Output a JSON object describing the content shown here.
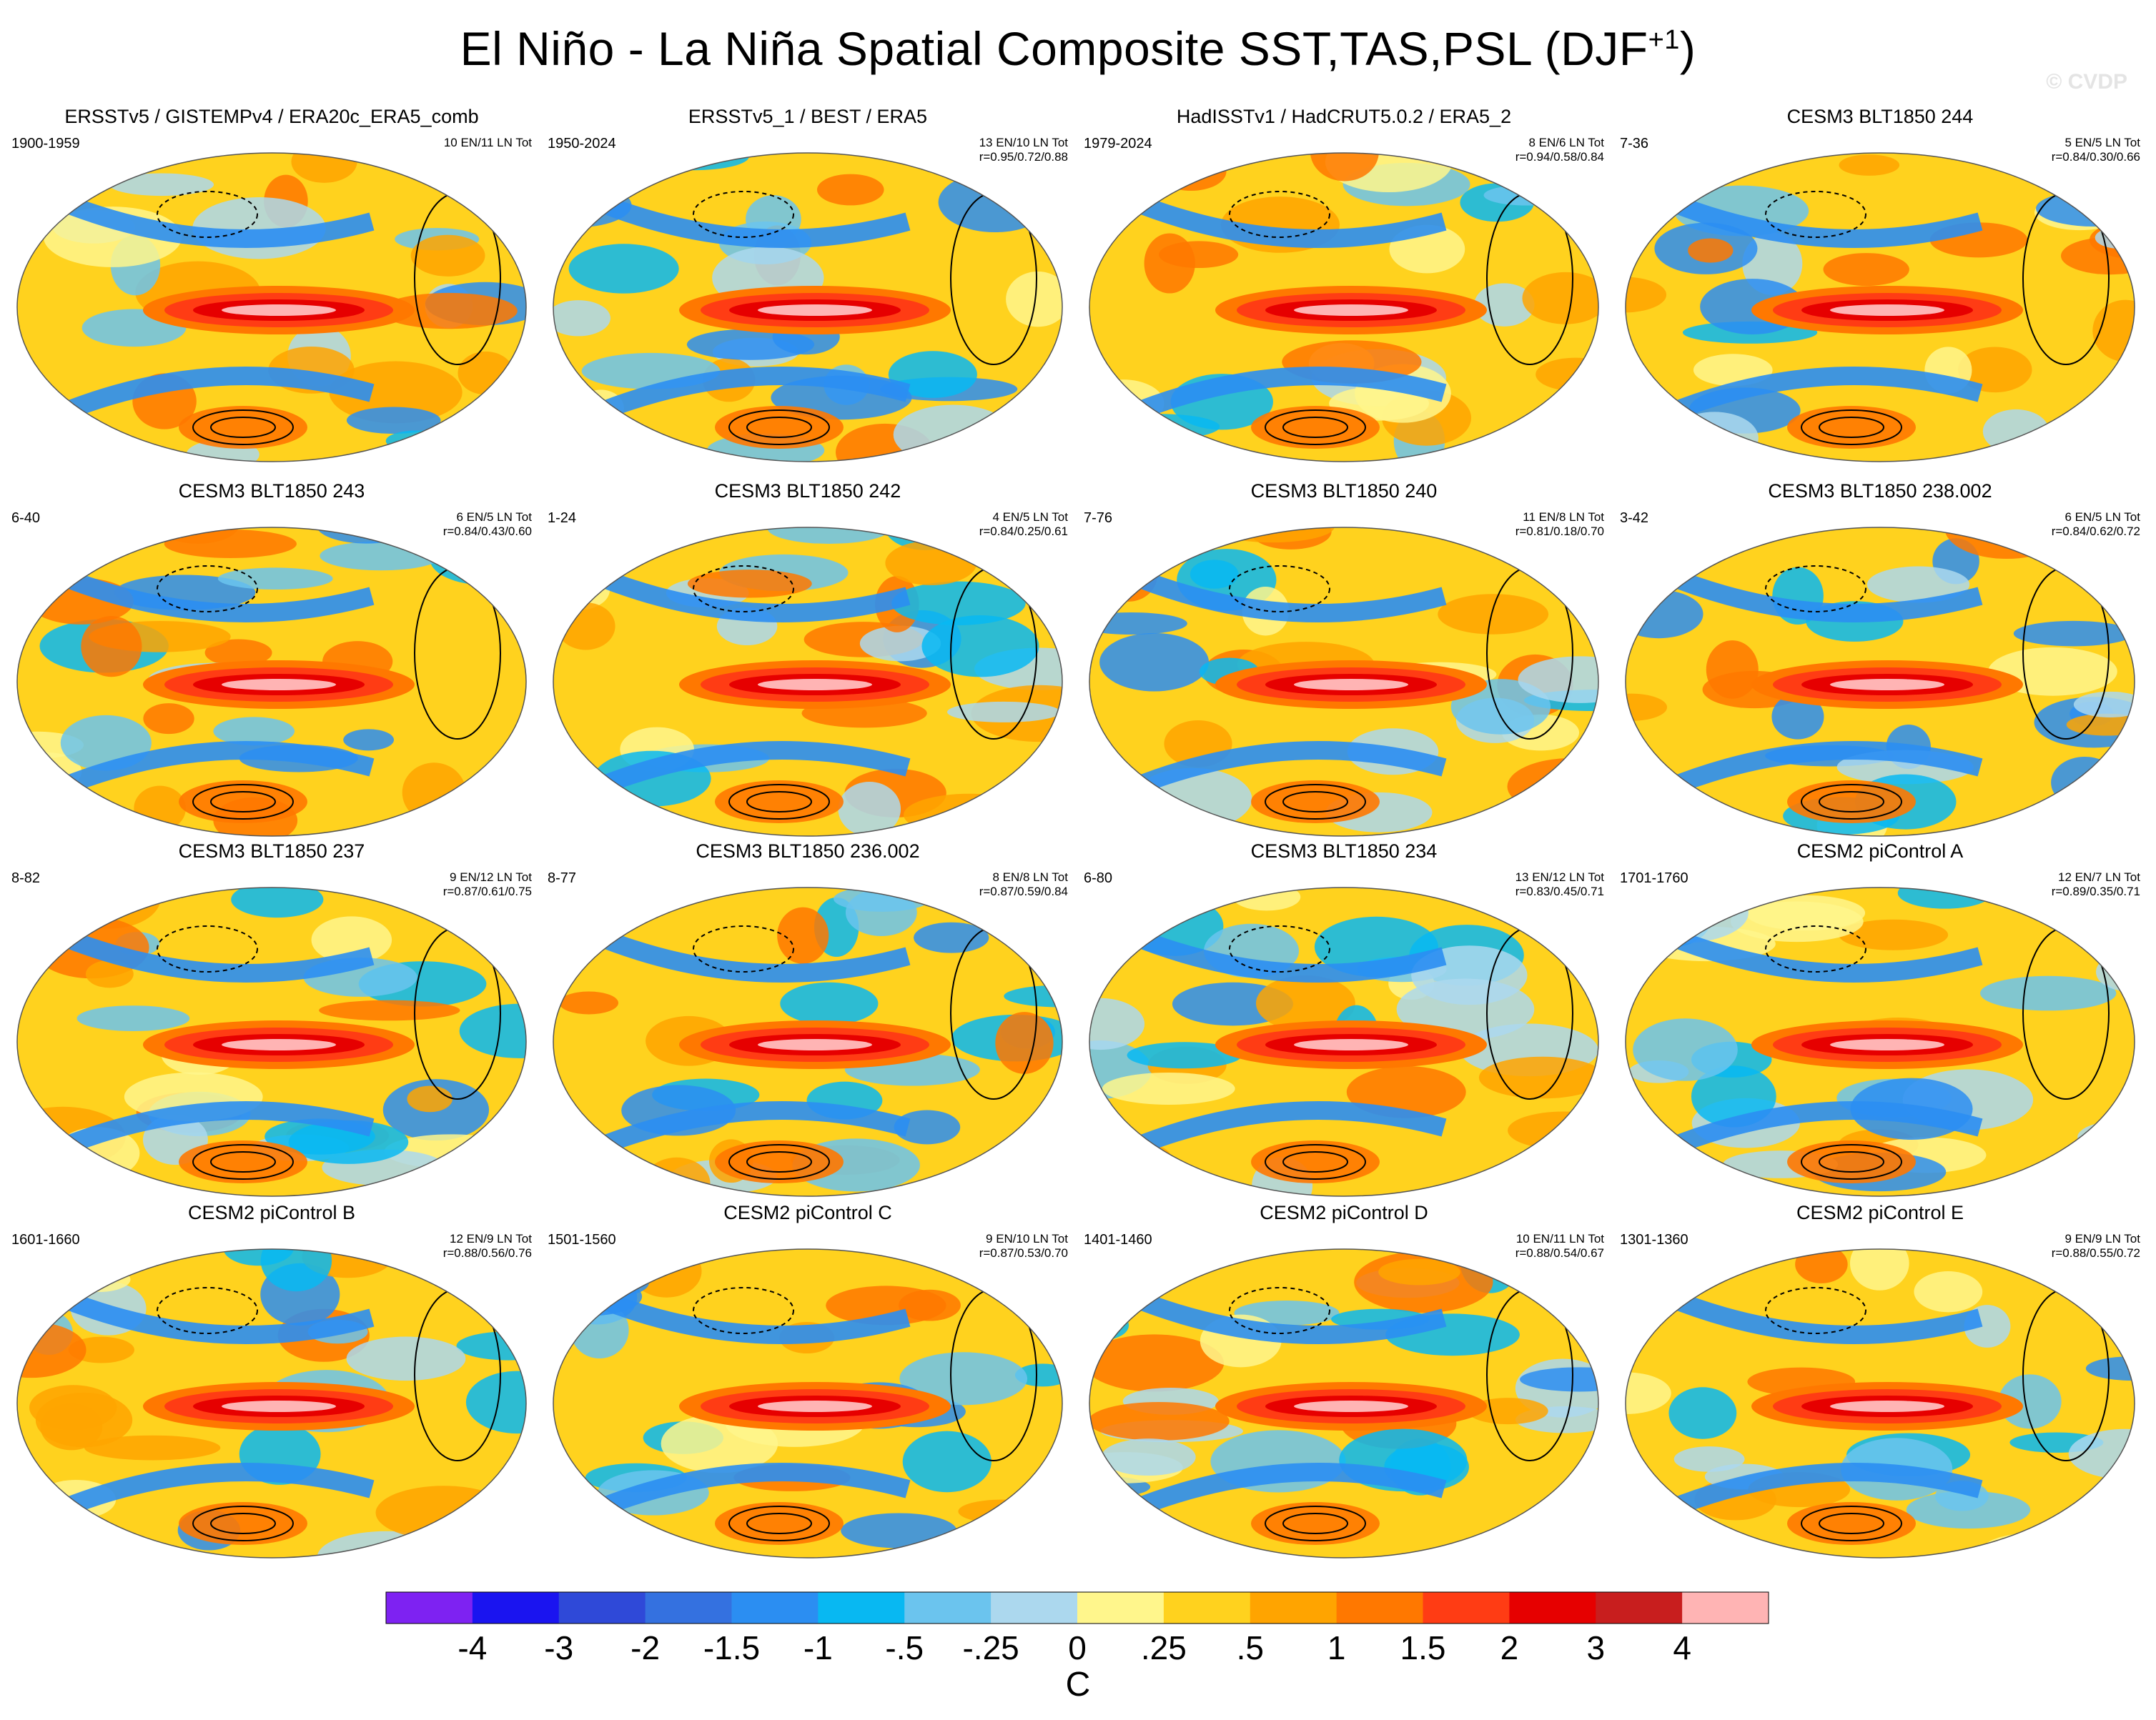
{
  "title": "El Niño - La Niña Spatial Composite SST,TAS,PSL (DJF",
  "title_superscript": "+1",
  "title_close": ")",
  "watermark": "© CVDP",
  "chart_data": {
    "type": "heatmap",
    "description_units": "C",
    "colorbar": {
      "labels": [
        "-4",
        "-3",
        "-2",
        "-1.5",
        "-1",
        "-.5",
        "-.25",
        "0",
        ".25",
        ".5",
        "1",
        "1.5",
        "2",
        "3",
        "4"
      ],
      "colors": [
        "#7e22f2",
        "#1a14f0",
        "#2f49d8",
        "#3471e0",
        "#2b8ef2",
        "#08b8f2",
        "#6bc4ee",
        "#acd8ee",
        "#fff68c",
        "#ffd21e",
        "#ffa400",
        "#ff7800",
        "#ff3c14",
        "#e60000",
        "#c81e1e",
        "#ffb4b4"
      ],
      "units": "C"
    },
    "panels": [
      {
        "title": "ERSSTv5 / GISTEMPv4 / ERA20c_ERA5_comb",
        "years": "1900-1959",
        "count": "10 EN/11 LN Tot",
        "corr": ""
      },
      {
        "title": "ERSSTv5_1 / BEST / ERA5",
        "years": "1950-2024",
        "count": "13 EN/10 LN Tot",
        "corr": "r=0.95/0.72/0.88"
      },
      {
        "title": "HadISSTv1 / HadCRUT5.0.2 / ERA5_2",
        "years": "1979-2024",
        "count": "8 EN/6 LN Tot",
        "corr": "r=0.94/0.58/0.84"
      },
      {
        "title": "CESM3 BLT1850 244",
        "years": "7-36",
        "count": "5 EN/5 LN Tot",
        "corr": "r=0.84/0.30/0.66"
      },
      {
        "title": "CESM3 BLT1850 243",
        "years": "6-40",
        "count": "6 EN/5 LN Tot",
        "corr": "r=0.84/0.43/0.60"
      },
      {
        "title": "CESM3 BLT1850 242",
        "years": "1-24",
        "count": "4 EN/5 LN Tot",
        "corr": "r=0.84/0.25/0.61"
      },
      {
        "title": "CESM3 BLT1850 240",
        "years": "7-76",
        "count": "11 EN/8 LN Tot",
        "corr": "r=0.81/0.18/0.70"
      },
      {
        "title": "CESM3 BLT1850 238.002",
        "years": "3-42",
        "count": "6 EN/5 LN Tot",
        "corr": "r=0.84/0.62/0.72"
      },
      {
        "title": "CESM3 BLT1850 237",
        "years": "8-82",
        "count": "9 EN/12 LN Tot",
        "corr": "r=0.87/0.61/0.75"
      },
      {
        "title": "CESM3 BLT1850 236.002",
        "years": "8-77",
        "count": "8 EN/8 LN Tot",
        "corr": "r=0.87/0.59/0.84"
      },
      {
        "title": "CESM3 BLT1850 234",
        "years": "6-80",
        "count": "13 EN/12 LN Tot",
        "corr": "r=0.83/0.45/0.71"
      },
      {
        "title": "CESM2 piControl A",
        "years": "1701-1760",
        "count": "12 EN/7 LN Tot",
        "corr": "r=0.89/0.35/0.71"
      },
      {
        "title": "CESM2 piControl B",
        "years": "1601-1660",
        "count": "12 EN/9 LN Tot",
        "corr": "r=0.88/0.56/0.76"
      },
      {
        "title": "CESM2 piControl C",
        "years": "1501-1560",
        "count": "9 EN/10 LN Tot",
        "corr": "r=0.87/0.53/0.70"
      },
      {
        "title": "CESM2 piControl D",
        "years": "1401-1460",
        "count": "10 EN/11 LN Tot",
        "corr": "r=0.88/0.54/0.67"
      },
      {
        "title": "CESM2 piControl E",
        "years": "1301-1360",
        "count": "9 EN/9 LN Tot",
        "corr": "r=0.88/0.55/0.72"
      }
    ]
  }
}
